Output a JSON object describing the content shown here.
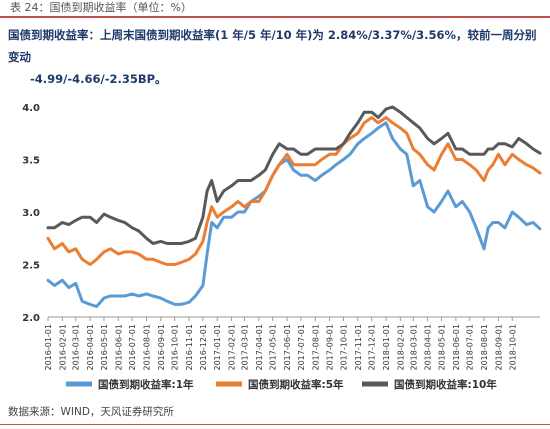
{
  "header": {
    "caption": "表 24：国债到期收益率（单位：%）"
  },
  "summary": {
    "line1": "国债到期收益率：上周末国债到期收益率(1 年/5 年/10 年)为 2.84%/3.37%/3.56%，较前一周分别变动",
    "line2": "-4.99/-4.66/-2.35BP。"
  },
  "footer": {
    "source": "数据来源：WIND，天风证券研究所"
  },
  "chart_data": {
    "type": "line",
    "ylim": [
      2.0,
      4.0
    ],
    "yticks": [
      "2.0",
      "2.5",
      "3.0",
      "3.5",
      "4.0"
    ],
    "xticks": [
      "2016-01-01",
      "2016-02-01",
      "2016-03-01",
      "2016-04-01",
      "2016-05-01",
      "2016-06-01",
      "2016-07-01",
      "2016-08-01",
      "2016-09-01",
      "2016-10-01",
      "2016-11-01",
      "2016-12-01",
      "2017-01-01",
      "2017-02-01",
      "2017-03-01",
      "2017-04-01",
      "2017-05-01",
      "2017-06-01",
      "2017-07-01",
      "2017-08-01",
      "2017-09-01",
      "2017-10-01",
      "2017-11-01",
      "2017-12-01",
      "2018-01-01",
      "2018-02-01",
      "2018-03-01",
      "2018-04-01",
      "2018-05-01",
      "2018-06-01",
      "2018-07-01",
      "2018-08-01",
      "2018-09-01",
      "2018-10-01"
    ],
    "x_end": "2018-11-30",
    "legend_position": "bottom",
    "grid": false,
    "series": [
      {
        "name": "国债到期收益率:1年",
        "color": "#5b9bd5",
        "x": [
          "2016-01-01",
          "2016-01-15",
          "2016-02-01",
          "2016-02-15",
          "2016-03-01",
          "2016-03-15",
          "2016-04-01",
          "2016-04-15",
          "2016-05-01",
          "2016-05-15",
          "2016-06-01",
          "2016-06-15",
          "2016-07-01",
          "2016-07-15",
          "2016-08-01",
          "2016-08-15",
          "2016-09-01",
          "2016-09-15",
          "2016-10-01",
          "2016-10-15",
          "2016-11-01",
          "2016-11-15",
          "2016-12-01",
          "2016-12-10",
          "2016-12-20",
          "2017-01-01",
          "2017-01-15",
          "2017-02-01",
          "2017-02-15",
          "2017-03-01",
          "2017-03-15",
          "2017-04-01",
          "2017-04-15",
          "2017-05-01",
          "2017-05-15",
          "2017-06-01",
          "2017-06-15",
          "2017-07-01",
          "2017-07-15",
          "2017-08-01",
          "2017-08-15",
          "2017-09-01",
          "2017-09-15",
          "2017-10-01",
          "2017-10-15",
          "2017-11-01",
          "2017-11-15",
          "2017-12-01",
          "2017-12-15",
          "2018-01-01",
          "2018-01-15",
          "2018-02-01",
          "2018-02-15",
          "2018-03-01",
          "2018-03-15",
          "2018-04-01",
          "2018-04-15",
          "2018-05-01",
          "2018-05-15",
          "2018-06-01",
          "2018-06-15",
          "2018-07-01",
          "2018-07-15",
          "2018-08-01",
          "2018-08-10",
          "2018-08-20",
          "2018-09-01",
          "2018-09-15",
          "2018-10-01",
          "2018-10-15",
          "2018-11-01",
          "2018-11-15",
          "2018-11-30"
        ],
        "values": [
          2.35,
          2.3,
          2.35,
          2.28,
          2.32,
          2.15,
          2.12,
          2.1,
          2.18,
          2.2,
          2.2,
          2.2,
          2.22,
          2.2,
          2.22,
          2.2,
          2.18,
          2.15,
          2.12,
          2.12,
          2.14,
          2.2,
          2.3,
          2.6,
          2.9,
          2.85,
          2.95,
          2.95,
          3.0,
          3.0,
          3.1,
          3.15,
          3.2,
          3.35,
          3.45,
          3.5,
          3.4,
          3.35,
          3.35,
          3.3,
          3.35,
          3.4,
          3.45,
          3.5,
          3.55,
          3.65,
          3.7,
          3.75,
          3.8,
          3.85,
          3.7,
          3.6,
          3.55,
          3.25,
          3.3,
          3.05,
          3.0,
          3.1,
          3.2,
          3.05,
          3.1,
          3.0,
          2.85,
          2.65,
          2.85,
          2.9,
          2.9,
          2.85,
          3.0,
          2.95,
          2.88,
          2.9,
          2.84
        ]
      },
      {
        "name": "国债到期收益率:5年",
        "color": "#ed7d31",
        "x": [
          "2016-01-01",
          "2016-01-15",
          "2016-02-01",
          "2016-02-15",
          "2016-03-01",
          "2016-03-15",
          "2016-04-01",
          "2016-04-15",
          "2016-05-01",
          "2016-05-15",
          "2016-06-01",
          "2016-06-15",
          "2016-07-01",
          "2016-07-15",
          "2016-08-01",
          "2016-08-15",
          "2016-09-01",
          "2016-09-15",
          "2016-10-01",
          "2016-10-15",
          "2016-11-01",
          "2016-11-15",
          "2016-12-01",
          "2016-12-10",
          "2016-12-20",
          "2017-01-01",
          "2017-01-15",
          "2017-02-01",
          "2017-02-15",
          "2017-03-01",
          "2017-03-15",
          "2017-04-01",
          "2017-04-15",
          "2017-05-01",
          "2017-05-15",
          "2017-06-01",
          "2017-06-15",
          "2017-07-01",
          "2017-07-15",
          "2017-08-01",
          "2017-08-15",
          "2017-09-01",
          "2017-09-15",
          "2017-10-01",
          "2017-10-15",
          "2017-11-01",
          "2017-11-15",
          "2017-12-01",
          "2017-12-15",
          "2018-01-01",
          "2018-01-15",
          "2018-02-01",
          "2018-02-15",
          "2018-03-01",
          "2018-03-15",
          "2018-04-01",
          "2018-04-15",
          "2018-05-01",
          "2018-05-15",
          "2018-06-01",
          "2018-06-15",
          "2018-07-01",
          "2018-07-15",
          "2018-08-01",
          "2018-08-10",
          "2018-08-20",
          "2018-09-01",
          "2018-09-15",
          "2018-10-01",
          "2018-10-15",
          "2018-11-01",
          "2018-11-15",
          "2018-11-30"
        ],
        "values": [
          2.75,
          2.65,
          2.7,
          2.62,
          2.65,
          2.55,
          2.5,
          2.55,
          2.62,
          2.65,
          2.6,
          2.62,
          2.62,
          2.6,
          2.55,
          2.55,
          2.52,
          2.5,
          2.5,
          2.52,
          2.55,
          2.6,
          2.72,
          2.9,
          3.05,
          2.95,
          3.0,
          3.05,
          3.1,
          3.05,
          3.1,
          3.1,
          3.2,
          3.35,
          3.45,
          3.55,
          3.45,
          3.45,
          3.45,
          3.45,
          3.5,
          3.55,
          3.55,
          3.65,
          3.7,
          3.75,
          3.85,
          3.9,
          3.85,
          3.9,
          3.85,
          3.8,
          3.75,
          3.6,
          3.55,
          3.45,
          3.4,
          3.55,
          3.65,
          3.5,
          3.5,
          3.45,
          3.4,
          3.3,
          3.4,
          3.45,
          3.55,
          3.45,
          3.55,
          3.5,
          3.45,
          3.42,
          3.37
        ]
      },
      {
        "name": "国债到期收益率:10年",
        "color": "#595959",
        "x": [
          "2016-01-01",
          "2016-01-15",
          "2016-02-01",
          "2016-02-15",
          "2016-03-01",
          "2016-03-15",
          "2016-04-01",
          "2016-04-15",
          "2016-05-01",
          "2016-05-15",
          "2016-06-01",
          "2016-06-15",
          "2016-07-01",
          "2016-07-15",
          "2016-08-01",
          "2016-08-15",
          "2016-09-01",
          "2016-09-15",
          "2016-10-01",
          "2016-10-15",
          "2016-11-01",
          "2016-11-15",
          "2016-12-01",
          "2016-12-10",
          "2016-12-20",
          "2017-01-01",
          "2017-01-15",
          "2017-02-01",
          "2017-02-15",
          "2017-03-01",
          "2017-03-15",
          "2017-04-01",
          "2017-04-15",
          "2017-05-01",
          "2017-05-15",
          "2017-06-01",
          "2017-06-15",
          "2017-07-01",
          "2017-07-15",
          "2017-08-01",
          "2017-08-15",
          "2017-09-01",
          "2017-09-15",
          "2017-10-01",
          "2017-10-15",
          "2017-11-01",
          "2017-11-15",
          "2017-12-01",
          "2017-12-15",
          "2018-01-01",
          "2018-01-15",
          "2018-02-01",
          "2018-02-15",
          "2018-03-01",
          "2018-03-15",
          "2018-04-01",
          "2018-04-15",
          "2018-05-01",
          "2018-05-15",
          "2018-06-01",
          "2018-06-15",
          "2018-07-01",
          "2018-07-15",
          "2018-08-01",
          "2018-08-10",
          "2018-08-20",
          "2018-09-01",
          "2018-09-15",
          "2018-10-01",
          "2018-10-15",
          "2018-11-01",
          "2018-11-15",
          "2018-11-30"
        ],
        "values": [
          2.85,
          2.85,
          2.9,
          2.88,
          2.92,
          2.95,
          2.95,
          2.9,
          2.98,
          2.95,
          2.92,
          2.9,
          2.85,
          2.82,
          2.75,
          2.7,
          2.72,
          2.7,
          2.7,
          2.7,
          2.72,
          2.75,
          2.95,
          3.2,
          3.3,
          3.1,
          3.2,
          3.25,
          3.3,
          3.3,
          3.3,
          3.35,
          3.4,
          3.55,
          3.65,
          3.6,
          3.6,
          3.55,
          3.55,
          3.6,
          3.6,
          3.6,
          3.6,
          3.65,
          3.75,
          3.85,
          3.95,
          3.95,
          3.9,
          3.98,
          4.0,
          3.95,
          3.9,
          3.85,
          3.8,
          3.7,
          3.65,
          3.7,
          3.75,
          3.6,
          3.6,
          3.55,
          3.55,
          3.55,
          3.6,
          3.6,
          3.65,
          3.65,
          3.62,
          3.7,
          3.65,
          3.6,
          3.56
        ]
      }
    ]
  }
}
